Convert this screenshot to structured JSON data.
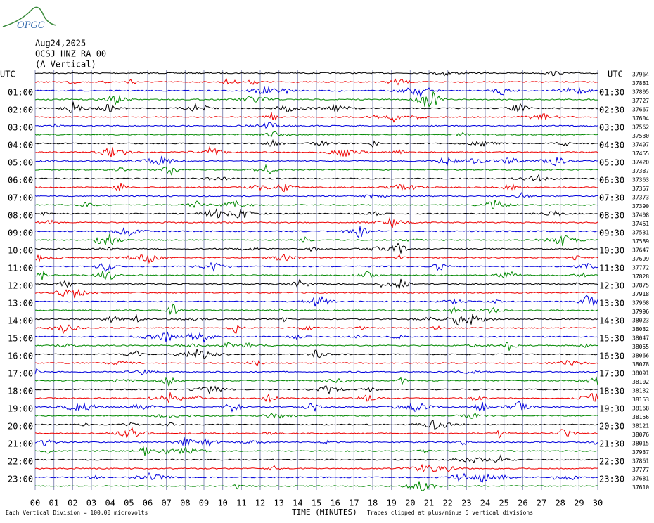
{
  "header": {
    "logo": "OPGC",
    "date": "Aug24,2025",
    "station": "OCSJ HNZ RA 00",
    "component": "(A Vertical)"
  },
  "axis": {
    "utc_left": "UTC",
    "utc_right": "UTC",
    "left_labels": [
      "01:00",
      "02:00",
      "03:00",
      "04:00",
      "05:00",
      "06:00",
      "07:00",
      "08:00",
      "09:00",
      "10:00",
      "11:00",
      "12:00",
      "13:00",
      "14:00",
      "15:00",
      "16:00",
      "17:00",
      "18:00",
      "19:00",
      "20:00",
      "21:00",
      "22:00",
      "23:00"
    ],
    "right_labels": [
      "01:30",
      "02:30",
      "03:30",
      "04:30",
      "05:30",
      "06:30",
      "07:30",
      "08:30",
      "09:30",
      "10:30",
      "11:30",
      "12:30",
      "13:30",
      "14:30",
      "15:30",
      "16:30",
      "17:30",
      "18:30",
      "19:30",
      "20:30",
      "21:30",
      "22:30",
      "23:30"
    ],
    "trace_numbers": [
      "37964",
      "37881",
      "37805",
      "37727",
      "37667",
      "37604",
      "37562",
      "37530",
      "37497",
      "37455",
      "37420",
      "37387",
      "37363",
      "37357",
      "37373",
      "37390",
      "37408",
      "37461",
      "37531",
      "37589",
      "37647",
      "37699",
      "37772",
      "37828",
      "37875",
      "37918",
      "37968",
      "37996",
      "38023",
      "38032",
      "38047",
      "38055",
      "38066",
      "38078",
      "38091",
      "38102",
      "38132",
      "38153",
      "38168",
      "38156",
      "38121",
      "38076",
      "38015",
      "37937",
      "37861",
      "37777",
      "37681",
      "37610"
    ],
    "x_labels": [
      "00",
      "01",
      "02",
      "03",
      "04",
      "05",
      "06",
      "07",
      "08",
      "09",
      "10",
      "11",
      "12",
      "13",
      "14",
      "15",
      "16",
      "17",
      "18",
      "19",
      "20",
      "21",
      "22",
      "23",
      "24",
      "25",
      "26",
      "27",
      "28",
      "29",
      "30"
    ]
  },
  "footer": {
    "division": "Each Vertical Division =  100.00 microvolts",
    "xlabel": "TIME (MINUTES)",
    "clip": "Traces clipped at plus/minus 5 vertical divisions"
  }
}
